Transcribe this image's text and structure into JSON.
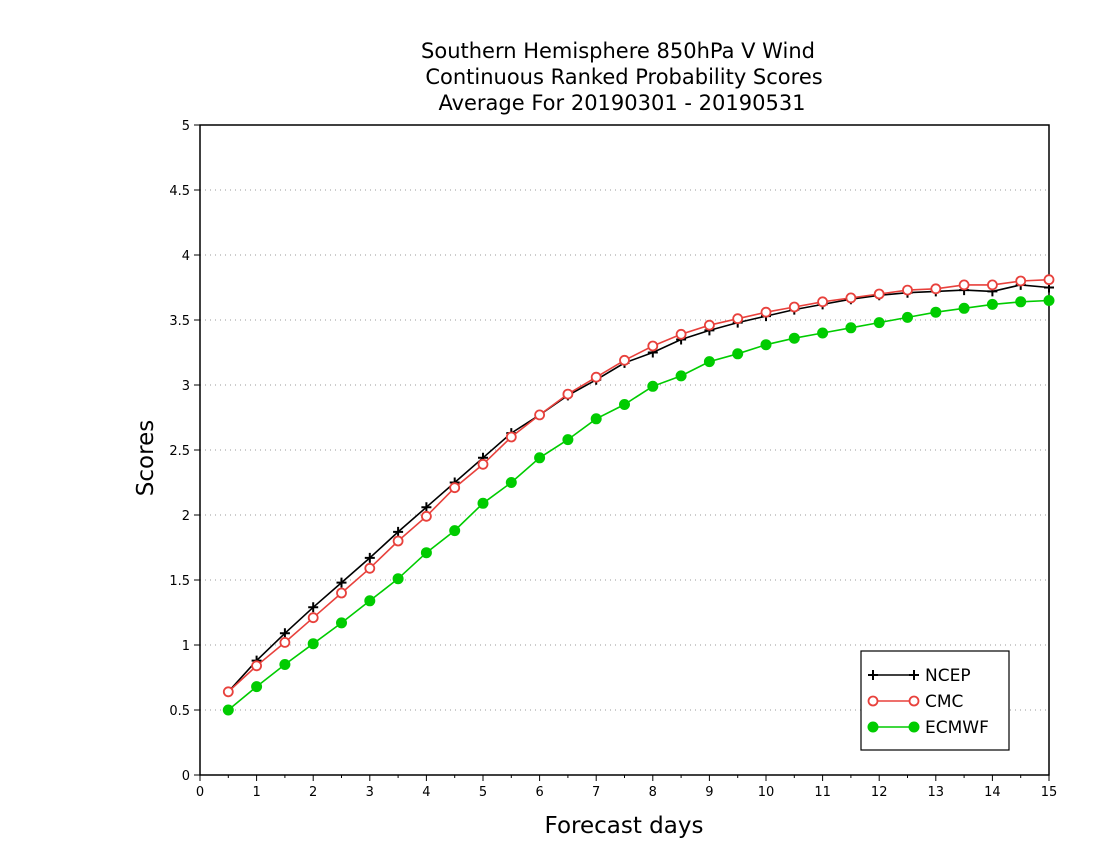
{
  "chart_data": {
    "type": "line",
    "title": [
      "Southern Hemisphere 850hPa V Wind",
      "Continuous Ranked Probability Scores",
      "Average For 20190301 - 20190531"
    ],
    "xlabel": "Forecast days",
    "ylabel": "Scores",
    "xlim": [
      0,
      15
    ],
    "ylim": [
      0,
      5
    ],
    "xticks": [
      "0",
      "1",
      "2",
      "3",
      "4",
      "5",
      "6",
      "7",
      "8",
      "9",
      "10",
      "11",
      "12",
      "13",
      "14",
      "15"
    ],
    "yticks": [
      "0",
      "0.5",
      "1",
      "1.5",
      "2",
      "2.5",
      "3",
      "3.5",
      "4",
      "4.5",
      "5"
    ],
    "grid": true,
    "legend_position": "bottom-right",
    "x": [
      0.5,
      1,
      1.5,
      2,
      2.5,
      3,
      3.5,
      4,
      4.5,
      5,
      5.5,
      6,
      6.5,
      7,
      7.5,
      8,
      8.5,
      9,
      9.5,
      10,
      10.5,
      11,
      11.5,
      12,
      12.5,
      13,
      13.5,
      14,
      14.5,
      15
    ],
    "series": [
      {
        "name": "NCEP",
        "color": "#000000",
        "marker": "plus",
        "values": [
          0.64,
          0.88,
          1.09,
          1.29,
          1.48,
          1.67,
          1.87,
          2.06,
          2.25,
          2.44,
          2.63,
          2.77,
          2.92,
          3.04,
          3.17,
          3.25,
          3.35,
          3.42,
          3.48,
          3.53,
          3.58,
          3.62,
          3.66,
          3.69,
          3.71,
          3.72,
          3.73,
          3.72,
          3.77,
          3.75
        ]
      },
      {
        "name": "CMC",
        "color": "#e8413c",
        "marker": "open-circle",
        "values": [
          0.64,
          0.84,
          1.02,
          1.21,
          1.4,
          1.59,
          1.8,
          1.99,
          2.21,
          2.39,
          2.6,
          2.77,
          2.93,
          3.06,
          3.19,
          3.3,
          3.39,
          3.46,
          3.51,
          3.56,
          3.6,
          3.64,
          3.67,
          3.7,
          3.73,
          3.74,
          3.77,
          3.77,
          3.8,
          3.81
        ]
      },
      {
        "name": "ECMWF",
        "color": "#00cc00",
        "marker": "filled-circle",
        "values": [
          0.5,
          0.68,
          0.85,
          1.01,
          1.17,
          1.34,
          1.51,
          1.71,
          1.88,
          2.09,
          2.25,
          2.44,
          2.58,
          2.74,
          2.85,
          2.99,
          3.07,
          3.18,
          3.24,
          3.31,
          3.36,
          3.4,
          3.44,
          3.48,
          3.52,
          3.56,
          3.59,
          3.62,
          3.64,
          3.65
        ]
      }
    ]
  }
}
